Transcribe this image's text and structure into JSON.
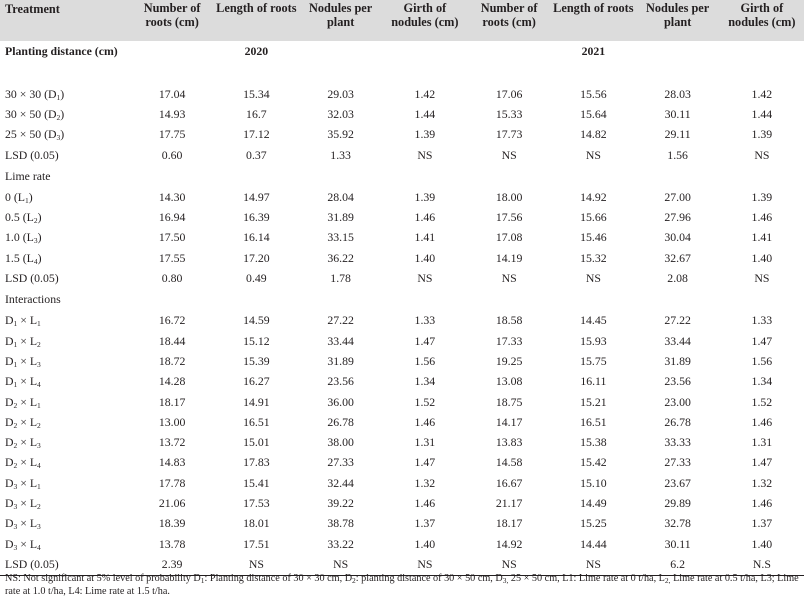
{
  "headers": [
    "Treatment",
    "Number of roots (cm)",
    "Length of roots",
    "Nodules per plant",
    "Girth of nodules (cm)",
    "Number of roots (cm)",
    "Length of roots",
    "Nodules per plant",
    "Girth of nodules (cm)"
  ],
  "sections": {
    "planting": {
      "title": "Planting distance (cm)",
      "year1": "2020",
      "year2": "2021",
      "rows": [
        {
          "label": "30 × 30 (D",
          "sub": "1",
          "tail": ")",
          "values": [
            "17.04",
            "15.34",
            "29.03",
            "1.42",
            "17.06",
            "15.56",
            "28.03",
            "1.42"
          ]
        },
        {
          "label": "30 × 50 (D",
          "sub": "2",
          "tail": ")",
          "values": [
            "14.93",
            "16.7",
            "32.03",
            "1.44",
            "15.33",
            "15.64",
            "30.11",
            "1.44"
          ]
        },
        {
          "label": "25 × 50 (D",
          "sub": "3",
          "tail": ")",
          "values": [
            "17.75",
            "17.12",
            "35.92",
            "1.39",
            "17.73",
            "14.82",
            "29.11",
            "1.39"
          ]
        },
        {
          "label": "LSD (0.05)",
          "sub": "",
          "tail": "",
          "values": [
            "0.60",
            "0.37",
            "1.33",
            "NS",
            "NS",
            "NS",
            "1.56",
            "NS"
          ]
        }
      ]
    },
    "lime": {
      "title": "Lime rate",
      "rows": [
        {
          "label": "0 (L",
          "sub": "1",
          "tail": ")",
          "values": [
            "14.30",
            "14.97",
            "28.04",
            "1.39",
            "18.00",
            "14.92",
            "27.00",
            "1.39"
          ]
        },
        {
          "label": "0.5 (L",
          "sub": "2",
          "tail": ")",
          "values": [
            "16.94",
            "16.39",
            "31.89",
            "1.46",
            "17.56",
            "15.66",
            "27.96",
            "1.46"
          ]
        },
        {
          "label": "1.0 (L",
          "sub": "3",
          "tail": ")",
          "values": [
            "17.50",
            "16.14",
            "33.15",
            "1.41",
            "17.08",
            "15.46",
            "30.04",
            "1.41"
          ]
        },
        {
          "label": "1.5 (L",
          "sub": "4",
          "tail": ")",
          "values": [
            "17.55",
            "17.20",
            "36.22",
            "1.40",
            "14.19",
            "15.32",
            "32.67",
            "1.40"
          ]
        },
        {
          "label": "LSD (0.05)",
          "sub": "",
          "tail": "",
          "values": [
            "0.80",
            "0.49",
            "1.78",
            "NS",
            "NS",
            "NS",
            "2.08",
            "NS"
          ]
        }
      ]
    },
    "interactions": {
      "title": "Interactions",
      "rows": [
        {
          "d": "1",
          "l": "1",
          "values": [
            "16.72",
            "14.59",
            "27.22",
            "1.33",
            "18.58",
            "14.45",
            "27.22",
            "1.33"
          ]
        },
        {
          "d": "1",
          "l": "2",
          "values": [
            "18.44",
            "15.12",
            "33.44",
            "1.47",
            "17.33",
            "15.93",
            "33.44",
            "1.47"
          ]
        },
        {
          "d": "1",
          "l": "3",
          "values": [
            "18.72",
            "15.39",
            "31.89",
            "1.56",
            "19.25",
            "15.75",
            "31.89",
            "1.56"
          ]
        },
        {
          "d": "1",
          "l": "4",
          "values": [
            "14.28",
            "16.27",
            "23.56",
            "1.34",
            "13.08",
            "16.11",
            "23.56",
            "1.34"
          ]
        },
        {
          "d": "2",
          "l": "1",
          "values": [
            "18.17",
            "14.91",
            "36.00",
            "1.52",
            "18.75",
            "15.21",
            "23.00",
            "1.52"
          ]
        },
        {
          "d": "2",
          "l": "2",
          "values": [
            "13.00",
            "16.51",
            "26.78",
            "1.46",
            "14.17",
            "16.51",
            "26.78",
            "1.46"
          ]
        },
        {
          "d": "2",
          "l": "3",
          "values": [
            "13.72",
            "15.01",
            "38.00",
            "1.31",
            "13.83",
            "15.38",
            "33.33",
            "1.31"
          ]
        },
        {
          "d": "2",
          "l": "4",
          "values": [
            "14.83",
            "17.83",
            "27.33",
            "1.47",
            "14.58",
            "15.42",
            "27.33",
            "1.47"
          ]
        },
        {
          "d": "3",
          "l": "1",
          "values": [
            "17.78",
            "15.41",
            "32.44",
            "1.32",
            "16.67",
            "15.10",
            "23.67",
            "1.32"
          ]
        },
        {
          "d": "3",
          "l": "2",
          "values": [
            "21.06",
            "17.53",
            "39.22",
            "1.46",
            "21.17",
            "14.49",
            "29.89",
            "1.46"
          ]
        },
        {
          "d": "3",
          "l": "3",
          "values": [
            "18.39",
            "18.01",
            "38.78",
            "1.37",
            "18.17",
            "15.25",
            "32.78",
            "1.37"
          ]
        },
        {
          "d": "3",
          "l": "4",
          "values": [
            "13.78",
            "17.51",
            "33.22",
            "1.40",
            "14.92",
            "14.44",
            "30.11",
            "1.40"
          ]
        }
      ],
      "lsd_label": "LSD (0.05)",
      "lsd_values": [
        "2.39",
        "NS",
        "NS",
        "NS",
        "NS",
        "NS",
        "6.2",
        "N.S"
      ]
    }
  },
  "footnote": {
    "p1": "NS: Not significant at 5% level of probability D",
    "p1s": "1",
    "p2": ": Planting distance of 30 × 30 cm, D",
    "p2s": "2",
    "p3": ": planting distance of 30 × 50 cm, D",
    "p3s": "3,",
    "p4": " 25 × 50 cm, L1: Lime rate at 0 t/ha, L",
    "p4s": "2,",
    "p5": " Lime rate at 0.5 t/ha, L3; Lime rate at 1.0 t/ha, L4: Lime rate at 1.5 t/ha."
  }
}
